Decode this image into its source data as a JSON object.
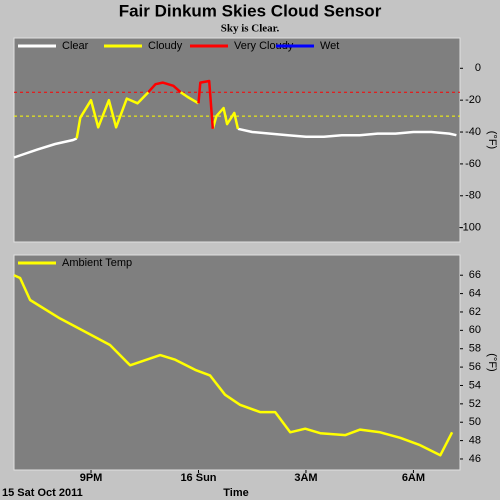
{
  "chart_data": [
    {
      "type": "line",
      "title": "Fair Dinkum Skies Cloud Sensor",
      "subtitle": "Sky is Clear.",
      "ylabel": "(°F)",
      "x": [
        18.85,
        19.5,
        20,
        20.5,
        20.6,
        20.7,
        21,
        21.2,
        21.5,
        21.7,
        22,
        22.3,
        22.6,
        22.8,
        23,
        23.3,
        23.5,
        23.7,
        24,
        24.05,
        24.3,
        24.4,
        24.5,
        24.7,
        24.8,
        25,
        25.1,
        25.5,
        26,
        26.5,
        27,
        27.5,
        28,
        28.5,
        29,
        29.5,
        30,
        30.5,
        31,
        31.2
      ],
      "xlim": [
        18.85,
        31.3
      ],
      "ylim": [
        -109,
        19
      ],
      "yticks": [
        0,
        -20,
        -40,
        -60,
        -80,
        -100
      ],
      "reference_lines": [
        {
          "value": -15,
          "color": "#ff0000"
        },
        {
          "value": -30,
          "color": "#ffff00"
        }
      ],
      "legend": "upper left",
      "series": [
        {
          "name": "Clear",
          "color": "#ffffff",
          "values": [
            -56,
            -51,
            -47.5,
            -45,
            -44,
            null,
            null,
            null,
            null,
            null,
            null,
            null,
            null,
            null,
            null,
            null,
            null,
            null,
            null,
            null,
            null,
            null,
            null,
            null,
            null,
            null,
            -38,
            -40,
            -41,
            -42,
            -43,
            -43,
            -42,
            -42,
            -41,
            -41,
            -40,
            -40,
            -41,
            -42
          ]
        },
        {
          "name": "Cloudy",
          "color": "#ffff00",
          "values": [
            null,
            null,
            null,
            null,
            -44,
            -31,
            -20,
            -37,
            -20,
            -37,
            -19,
            -22,
            -15,
            null,
            null,
            null,
            -15,
            -18,
            -22,
            null,
            null,
            -38,
            -30,
            -25,
            -35,
            -28,
            -38,
            null,
            null,
            null,
            null,
            null,
            null,
            null,
            null,
            null,
            null,
            null,
            null,
            null
          ]
        },
        {
          "name": "Very Cloudy",
          "color": "#ff0000",
          "values": [
            null,
            null,
            null,
            null,
            null,
            null,
            null,
            null,
            null,
            null,
            null,
            null,
            -15,
            -10,
            -9,
            -11,
            -15,
            null,
            -22,
            -9,
            -8,
            -38,
            null,
            null,
            null,
            null,
            null,
            null,
            null,
            null,
            null,
            null,
            null,
            null,
            null,
            null,
            null,
            null,
            null,
            null
          ]
        },
        {
          "name": "Wet",
          "color": "#0000ff",
          "values": [
            null,
            null,
            null,
            null,
            null,
            null,
            null,
            null,
            null,
            null,
            null,
            null,
            null,
            null,
            null,
            null,
            null,
            null,
            null,
            null,
            null,
            null,
            null,
            null,
            null,
            null,
            null,
            null,
            null,
            null,
            null,
            null,
            null,
            null,
            null,
            null,
            null,
            null,
            null,
            null
          ]
        }
      ]
    },
    {
      "type": "line",
      "ylabel": "(°F)",
      "xlabel": "Time",
      "date_label": "15 Sat Oct 2011",
      "x": [
        18.85,
        19.02,
        19.3,
        20.13,
        21.0,
        21.53,
        22.09,
        22.93,
        23.35,
        23.91,
        24.32,
        24.74,
        25.16,
        25.72,
        26.14,
        26.56,
        26.98,
        27.4,
        28.1,
        28.51,
        29.07,
        29.63,
        30.19,
        30.75,
        31.08
      ],
      "xlim": [
        18.85,
        31.3
      ],
      "ylim": [
        44.8,
        68.2
      ],
      "yticks": [
        46,
        48,
        50,
        52,
        54,
        56,
        58,
        60,
        62,
        64,
        66
      ],
      "xticks": [
        {
          "value": 21,
          "label": "9PM"
        },
        {
          "value": 24,
          "label": "16 Sun"
        },
        {
          "value": 27,
          "label": "3AM"
        },
        {
          "value": 30,
          "label": "6AM"
        }
      ],
      "legend": "upper left",
      "series": [
        {
          "name": "Ambient Temp",
          "color": "#ffff00",
          "values": [
            66,
            65.7,
            63.3,
            61.3,
            59.5,
            58.4,
            56.2,
            57.3,
            56.8,
            55.7,
            55.1,
            53,
            51.9,
            51.1,
            51.1,
            48.9,
            49.3,
            48.8,
            48.6,
            49.2,
            48.9,
            48.3,
            47.5,
            46.4,
            48.9
          ]
        }
      ]
    }
  ]
}
